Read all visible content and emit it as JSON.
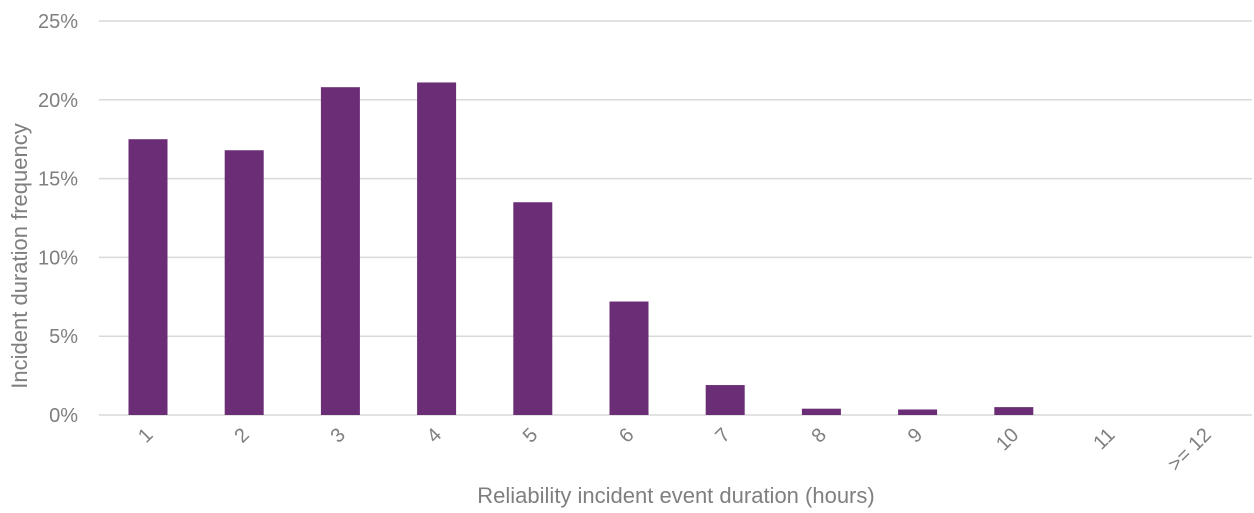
{
  "chart_data": {
    "type": "bar",
    "title": "",
    "xlabel": "Reliability incident event duration (hours)",
    "ylabel": "Incident duration frequency",
    "categories": [
      "1",
      "2",
      "3",
      "4",
      "5",
      "6",
      "7",
      "8",
      "9",
      "10",
      "11",
      ">= 12"
    ],
    "values": [
      17.5,
      16.8,
      20.8,
      21.1,
      13.5,
      7.2,
      1.9,
      0.4,
      0.35,
      0.5,
      0,
      0
    ],
    "ylim": [
      0,
      25
    ],
    "yticks": [
      0,
      5,
      10,
      15,
      20,
      25
    ],
    "ytick_labels": [
      "0%",
      "5%",
      "10%",
      "15%",
      "20%",
      "25%"
    ],
    "grid": true,
    "legend": "none",
    "bar_color": "#6b2d75",
    "grid_color": "#d9d9d9",
    "text_color": "#7f7f7f"
  }
}
